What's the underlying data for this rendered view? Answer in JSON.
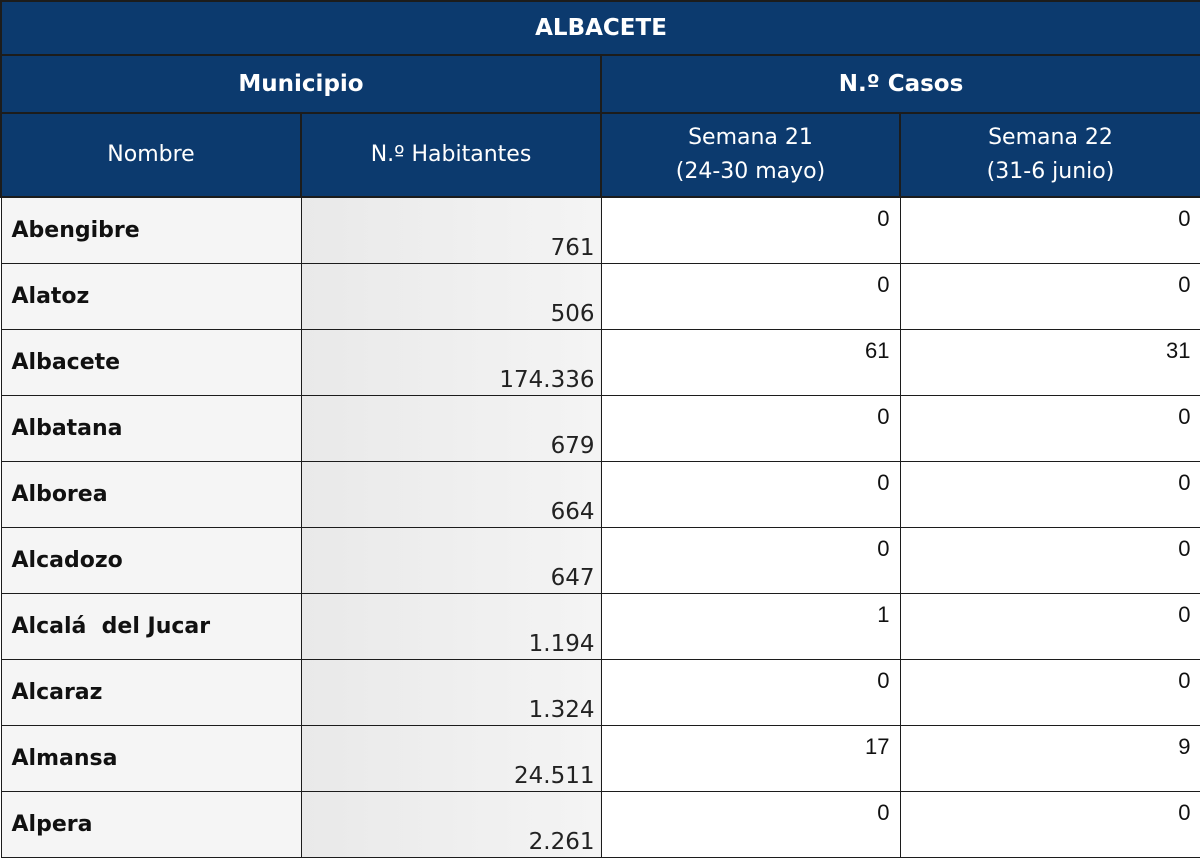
{
  "table": {
    "title": "ALBACETE",
    "group_headers": [
      "Municipio",
      "N.º Casos"
    ],
    "sub_headers": {
      "nombre": "Nombre",
      "habitantes": "N.º Habitantes",
      "semana21_line1": "Semana 21",
      "semana21_line2": "(24-30 mayo)",
      "semana22_line1": "Semana 22",
      "semana22_line2": "(31-6 junio)"
    },
    "rows": [
      {
        "nombre": "Abengibre",
        "habitantes": "761",
        "semana21": "0",
        "semana22": "0"
      },
      {
        "nombre": "Alatoz",
        "habitantes": "506",
        "semana21": "0",
        "semana22": "0"
      },
      {
        "nombre": "Albacete",
        "habitantes": "174.336",
        "semana21": "61",
        "semana22": "31"
      },
      {
        "nombre": "Albatana",
        "habitantes": "679",
        "semana21": "0",
        "semana22": "0"
      },
      {
        "nombre": "Alborea",
        "habitantes": "664",
        "semana21": "0",
        "semana22": "0"
      },
      {
        "nombre": "Alcadozo",
        "habitantes": "647",
        "semana21": "0",
        "semana22": "0"
      },
      {
        "nombre": "Alcalá  del Jucar",
        "habitantes": "1.194",
        "semana21": "1",
        "semana22": "0"
      },
      {
        "nombre": "Alcaraz",
        "habitantes": "1.324",
        "semana21": "0",
        "semana22": "0"
      },
      {
        "nombre": "Almansa",
        "habitantes": "24.511",
        "semana21": "17",
        "semana22": "9"
      },
      {
        "nombre": "Alpera",
        "habitantes": "2.261",
        "semana21": "0",
        "semana22": "0"
      }
    ]
  }
}
